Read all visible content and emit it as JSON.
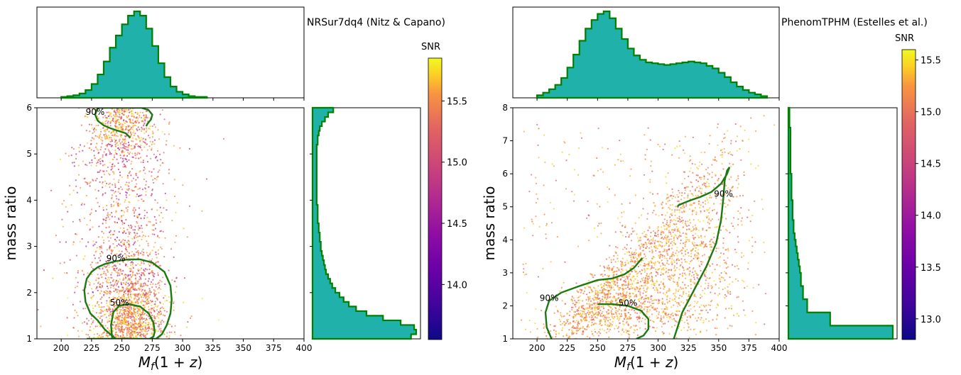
{
  "colors": {
    "histogram_fill": "#20b2aa",
    "histogram_edge": "#008000",
    "contour": "#1a7a10",
    "colormap": "plasma"
  },
  "chart_data": [
    {
      "type": "scatter",
      "title": "NRSur7dq4 (Nitz & Capano)",
      "xlabel": "M_f(1+z)",
      "ylabel": "mass ratio",
      "xlim": [
        180,
        400
      ],
      "ylim": [
        1,
        6
      ],
      "xticks": [
        "200",
        "225",
        "250",
        "275",
        "300",
        "325",
        "350",
        "375",
        "400"
      ],
      "yticks": [
        "1",
        "2",
        "3",
        "4",
        "5",
        "6"
      ],
      "colorbar": {
        "label": "SNR",
        "range": [
          13.55,
          15.85
        ],
        "ticks": [
          "14.0",
          "14.5",
          "15.0",
          "15.5"
        ]
      },
      "contours": [
        {
          "label": "90%",
          "x": [
            245,
            236,
            230,
            224,
            220,
            219,
            221,
            225,
            230,
            236,
            245,
            255,
            265,
            275,
            285,
            290,
            291,
            290,
            287,
            283,
            278,
            272,
            265,
            258,
            250,
            242,
            235,
            230,
            225,
            222,
            221
          ],
          "y": [
            1.0,
            1.2,
            1.4,
            1.55,
            1.8,
            2.05,
            2.3,
            2.45,
            2.55,
            2.62,
            2.68,
            2.72,
            2.72,
            2.65,
            2.45,
            2.15,
            1.85,
            1.55,
            1.3,
            1.1,
            1.0,
            1.0,
            1.0,
            1.0,
            1.0,
            1.0,
            1.0,
            1.0,
            1.0,
            1.0,
            1.0
          ]
        },
        {
          "label": "50%",
          "x": [
            242,
            241,
            243,
            248,
            256,
            265,
            272,
            276,
            277,
            276,
            273
          ],
          "y": [
            1.0,
            1.3,
            1.58,
            1.72,
            1.75,
            1.7,
            1.55,
            1.35,
            1.15,
            1.05,
            1.0
          ]
        },
        {
          "label": "90%",
          "x": [
            257,
            253,
            247,
            241,
            235,
            230,
            228,
            230,
            235,
            242,
            250,
            258,
            266,
            272,
            275,
            274,
            271,
            270
          ],
          "y": [
            5.35,
            5.45,
            5.5,
            5.55,
            5.62,
            5.72,
            5.85,
            6.0,
            6.0,
            6.0,
            6.0,
            6.0,
            6.0,
            5.95,
            5.85,
            5.75,
            5.65,
            5.6
          ]
        }
      ],
      "x_hist": {
        "bins_start": 200,
        "bin_width": 5,
        "counts": [
          1,
          2,
          3,
          5,
          9,
          16,
          27,
          42,
          58,
          72,
          85,
          95,
          100,
          95,
          80,
          60,
          40,
          24,
          13,
          7,
          4,
          2,
          1,
          1
        ]
      },
      "y_hist": {
        "bins_start": 1.0,
        "bin_width": 0.1,
        "counts": [
          95,
          100,
          98,
          85,
          68,
          52,
          42,
          35,
          30,
          26,
          22,
          19,
          17,
          15,
          13,
          12,
          11,
          10,
          9,
          8,
          8,
          7,
          7,
          6,
          6,
          5,
          5,
          5,
          5,
          4,
          4,
          4,
          4,
          4,
          4,
          4,
          4,
          4,
          4,
          4,
          4,
          4,
          5,
          5,
          6,
          7,
          9,
          12,
          15,
          20
        ]
      }
    },
    {
      "type": "scatter",
      "title": "PhenomTPHM (Estelles et al.)",
      "xlabel": "M_f(1+z)",
      "ylabel": "mass ratio",
      "xlim": [
        180,
        400
      ],
      "ylim": [
        1,
        8
      ],
      "xticks": [
        "200",
        "225",
        "250",
        "275",
        "300",
        "325",
        "350",
        "375",
        "400"
      ],
      "yticks": [
        "1",
        "2",
        "3",
        "4",
        "5",
        "6",
        "7",
        "8"
      ],
      "colorbar": {
        "label": "SNR",
        "range": [
          12.8,
          15.6
        ],
        "ticks": [
          "13.0",
          "13.5",
          "14.0",
          "14.5",
          "15.0",
          "15.5"
        ]
      },
      "contours": [
        {
          "label": "90%",
          "x": [
            212,
            208,
            207,
            210,
            220,
            235,
            250,
            262,
            272,
            280,
            287
          ],
          "y": [
            1.0,
            1.35,
            1.8,
            2.15,
            2.4,
            2.6,
            2.78,
            2.83,
            2.95,
            3.15,
            3.45
          ]
        },
        {
          "label": "90%",
          "x": [
            313,
            320,
            330,
            340,
            348,
            352,
            354,
            355,
            357,
            359,
            357,
            352,
            344,
            335,
            327,
            320,
            317,
            316
          ],
          "y": [
            1.0,
            1.8,
            2.5,
            3.2,
            3.9,
            4.6,
            5.3,
            5.8,
            6.1,
            6.2,
            6.0,
            5.7,
            5.45,
            5.3,
            5.2,
            5.1,
            5.05,
            5.0
          ]
        },
        {
          "label": "50%",
          "x": [
            250,
            262,
            275,
            286,
            292,
            292,
            288,
            282
          ],
          "y": [
            2.05,
            2.05,
            2.0,
            1.85,
            1.6,
            1.3,
            1.1,
            1.0
          ]
        }
      ],
      "x_hist": {
        "bins_start": 200,
        "bin_width": 5,
        "counts": [
          3,
          6,
          10,
          15,
          23,
          35,
          50,
          66,
          80,
          90,
          97,
          100,
          92,
          80,
          68,
          57,
          49,
          44,
          41,
          40,
          39,
          38,
          39,
          40,
          41,
          42,
          41,
          40,
          37,
          34,
          29,
          24,
          18,
          13,
          9,
          6,
          4,
          2
        ]
      },
      "y_hist": {
        "bins_start": 1.0,
        "bin_width": 0.2,
        "counts": [
          100,
          100,
          40,
          40,
          18,
          18,
          14,
          14,
          12,
          12,
          11,
          10,
          9,
          8,
          7,
          6,
          5,
          5,
          4,
          4,
          4,
          3,
          3,
          3,
          3,
          2,
          2,
          2,
          2,
          2,
          2,
          2,
          1,
          1,
          1
        ]
      }
    }
  ]
}
